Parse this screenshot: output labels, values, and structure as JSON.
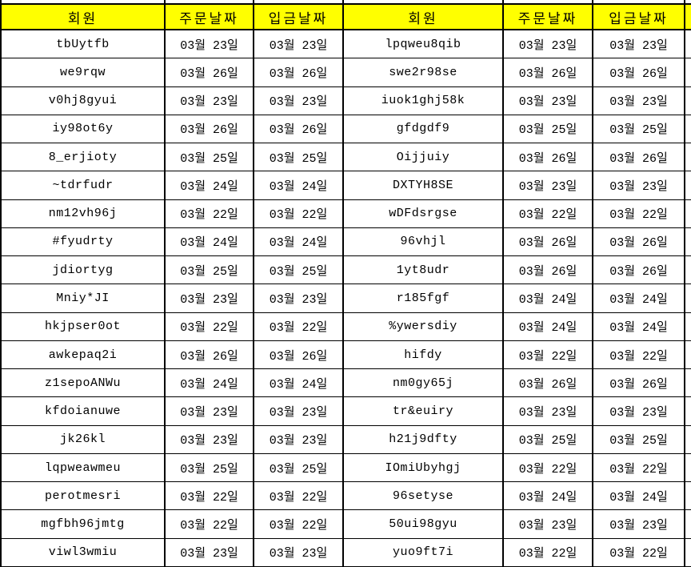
{
  "table": {
    "columns": [
      "회원",
      "주문날짜",
      "입금날짜",
      "회원",
      "주문날짜",
      "입금날짜"
    ],
    "rows": [
      [
        "tbUytfb",
        "03월 23일",
        "03월 23일",
        "lpqweu8qib",
        "03월 23일",
        "03월 23일"
      ],
      [
        "we9rqw",
        "03월 26일",
        "03월 26일",
        "swe2r98se",
        "03월 26일",
        "03월 26일"
      ],
      [
        "v0hj8gyui",
        "03월 23일",
        "03월 23일",
        "iuok1ghj58k",
        "03월 23일",
        "03월 23일"
      ],
      [
        "iy98ot6y",
        "03월 26일",
        "03월 26일",
        "gfdgdf9",
        "03월 25일",
        "03월 25일"
      ],
      [
        "8_erjioty",
        "03월 25일",
        "03월 25일",
        "Oijjuiy",
        "03월 26일",
        "03월 26일"
      ],
      [
        "~tdrfudr",
        "03월 24일",
        "03월 24일",
        "DXTYH8SE",
        "03월 23일",
        "03월 23일"
      ],
      [
        "nm12vh96j",
        "03월 22일",
        "03월 22일",
        "wDFdsrgse",
        "03월 22일",
        "03월 22일"
      ],
      [
        "#fyudrty",
        "03월 24일",
        "03월 24일",
        "96vhjl",
        "03월 26일",
        "03월 26일"
      ],
      [
        "jdiortyg",
        "03월 25일",
        "03월 25일",
        "1yt8udr",
        "03월 26일",
        "03월 26일"
      ],
      [
        "Mniy*JI",
        "03월 23일",
        "03월 23일",
        "r185fgf",
        "03월 24일",
        "03월 24일"
      ],
      [
        "hkjpser0ot",
        "03월 22일",
        "03월 22일",
        "%ywersdiy",
        "03월 24일",
        "03월 24일"
      ],
      [
        "awkepaq2i",
        "03월 26일",
        "03월 26일",
        "hifdy",
        "03월 22일",
        "03월 22일"
      ],
      [
        "z1sepoANWu",
        "03월 24일",
        "03월 24일",
        "nm0gy65j",
        "03월 26일",
        "03월 26일"
      ],
      [
        "kfdoianuwe",
        "03월 23일",
        "03월 23일",
        "tr&euiry",
        "03월 23일",
        "03월 23일"
      ],
      [
        "jk26kl",
        "03월 23일",
        "03월 23일",
        "h21j9dfty",
        "03월 25일",
        "03월 25일"
      ],
      [
        "lqpweawmeu",
        "03월 25일",
        "03월 25일",
        "IOmiUbyhgj",
        "03월 22일",
        "03월 22일"
      ],
      [
        "perotmesri",
        "03월 22일",
        "03월 22일",
        "96setyse",
        "03월 24일",
        "03월 24일"
      ],
      [
        "mgfbh96jmtg",
        "03월 22일",
        "03월 22일",
        "50ui98gyu",
        "03월 23일",
        "03월 23일"
      ],
      [
        "viwl3wmiu",
        "03월 23일",
        "03월 23일",
        "yuo9ft7i",
        "03월 22일",
        "03월 22일"
      ]
    ]
  },
  "colors": {
    "header_bg": "#ffff00",
    "grid_border": "#000000",
    "text": "#000000",
    "cell_bg": "#ffffff"
  }
}
